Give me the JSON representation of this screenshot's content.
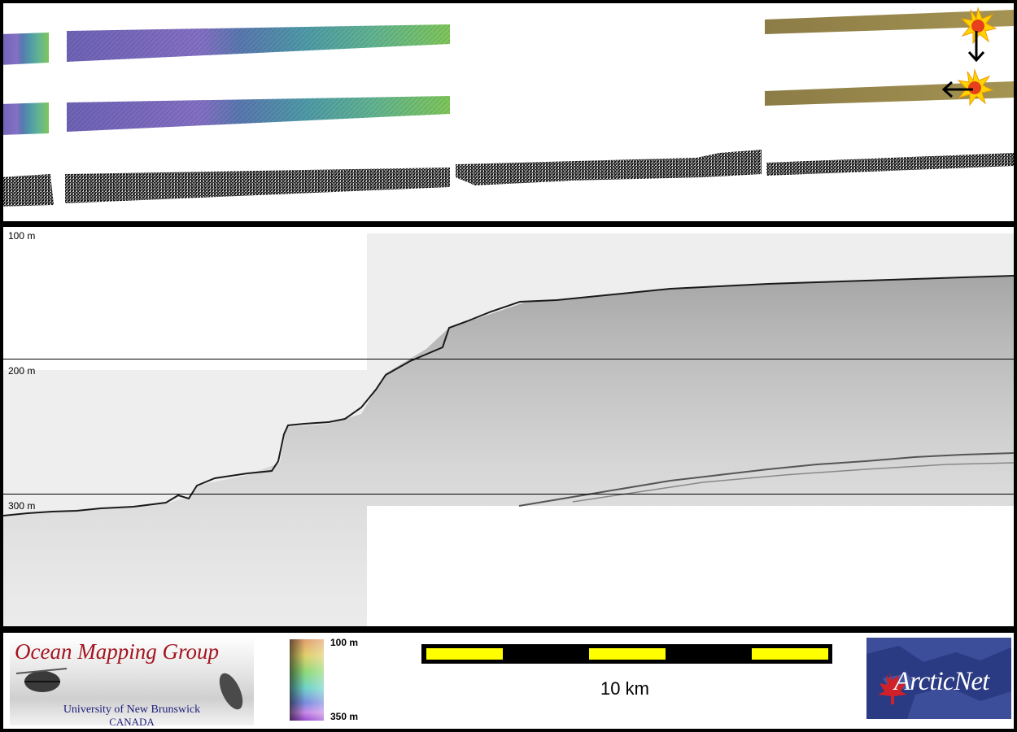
{
  "depth_labels": [
    "100 m",
    "200 m",
    "300 m"
  ],
  "legend": {
    "logo_title": "Ocean Mapping Group",
    "logo_university": "University of New Brunswick",
    "logo_country": "CANADA",
    "colorbar_top": "100 m",
    "colorbar_bottom": "350 m",
    "scale_label": "10 km",
    "arcticnet": "ArcticNet"
  },
  "colors": {
    "scale_fill": "#ffff00",
    "omg_red": "#a3141e",
    "omg_blue": "#1c1d7a",
    "arcticnet_bg": "#2a3a83",
    "marker_red": "#e0201c",
    "marker_yellow": "#ffd400"
  },
  "icons": [
    "sun-marker-icon",
    "arrow-down-icon",
    "arrow-left-icon",
    "maple-leaf-icon"
  ]
}
